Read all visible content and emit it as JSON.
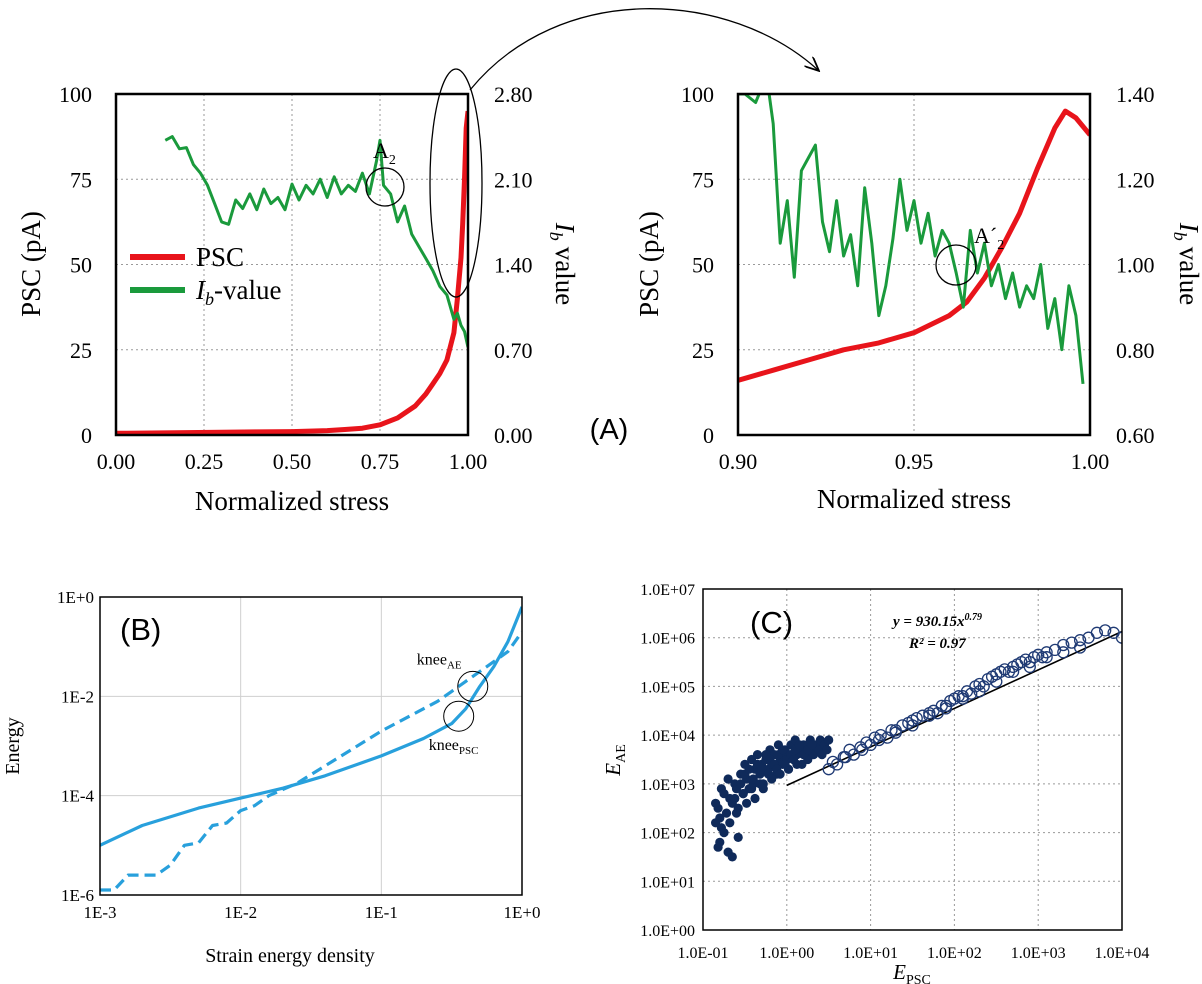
{
  "panel_labels": {
    "a": "(A)",
    "b": "(B)",
    "c": "(C)"
  },
  "colors": {
    "psc": "#e8141b",
    "ib": "#1a9a3c",
    "blue": "#28a0dc",
    "navy": "#0f2a5a"
  },
  "chart_data": [
    {
      "id": "A-left",
      "type": "line",
      "xlabel": "Normalized stress",
      "ylabel_left": "PSC (pA)",
      "ylabel_right": "value",
      "ylabel_right_italic": "I",
      "ylabel_right_sub": "b",
      "xlim": [
        0,
        1
      ],
      "ylim_left": [
        0,
        100
      ],
      "ylim_right": [
        0,
        2.8
      ],
      "x_ticks": [
        "0.00",
        "0.25",
        "0.50",
        "0.75",
        "1.00"
      ],
      "y_ticks_left": [
        "0",
        "25",
        "50",
        "75",
        "100"
      ],
      "y_ticks_right": [
        "0.00",
        "0.70",
        "1.40",
        "2.10",
        "2.80"
      ],
      "legend": {
        "psc": "PSC",
        "ib_italic": "I",
        "ib_sub": "b",
        "ib_rest": "-value"
      },
      "annotation": {
        "text": "A",
        "sub": "2"
      },
      "series": [
        {
          "name": "PSC",
          "axis": "left",
          "x": [
            0,
            0.1,
            0.2,
            0.3,
            0.4,
            0.5,
            0.6,
            0.65,
            0.7,
            0.75,
            0.8,
            0.85,
            0.88,
            0.9,
            0.92,
            0.94,
            0.96,
            0.97,
            0.98,
            0.985,
            0.99,
            0.995,
            1.0
          ],
          "y": [
            0.5,
            0.6,
            0.7,
            0.8,
            0.9,
            1.0,
            1.3,
            1.6,
            2.0,
            3.0,
            5.0,
            8.5,
            12,
            15,
            18,
            22,
            30,
            40,
            52,
            62,
            75,
            90,
            95
          ]
        },
        {
          "name": "Ib-value",
          "axis": "right",
          "x": [
            0.14,
            0.16,
            0.18,
            0.2,
            0.22,
            0.24,
            0.26,
            0.28,
            0.3,
            0.32,
            0.34,
            0.36,
            0.38,
            0.4,
            0.42,
            0.44,
            0.46,
            0.48,
            0.5,
            0.52,
            0.54,
            0.56,
            0.58,
            0.6,
            0.62,
            0.64,
            0.66,
            0.68,
            0.7,
            0.72,
            0.74,
            0.75,
            0.76,
            0.78,
            0.8,
            0.82,
            0.84,
            0.86,
            0.88,
            0.9,
            0.92,
            0.94,
            0.95,
            0.96,
            0.97,
            0.98,
            0.99,
            1.0
          ],
          "y": [
            2.42,
            2.45,
            2.35,
            2.36,
            2.22,
            2.15,
            2.05,
            1.9,
            1.75,
            1.73,
            1.93,
            1.86,
            1.98,
            1.85,
            2.02,
            1.9,
            1.95,
            1.85,
            2.06,
            1.93,
            2.05,
            1.98,
            2.1,
            1.95,
            2.12,
            1.98,
            2.05,
            2.0,
            2.15,
            1.98,
            2.25,
            2.42,
            2.05,
            1.98,
            1.75,
            1.88,
            1.65,
            1.55,
            1.45,
            1.35,
            1.22,
            1.15,
            1.05,
            0.95,
            1.0,
            0.9,
            0.85,
            0.72
          ]
        }
      ]
    },
    {
      "id": "A-right",
      "type": "line",
      "xlabel": "Normalized stress",
      "ylabel_left": "PSC (pA)",
      "ylabel_right": "value",
      "ylabel_right_italic": "I",
      "ylabel_right_sub": "b",
      "xlim": [
        0.9,
        1.0
      ],
      "ylim_left": [
        0,
        100
      ],
      "ylim_right": [
        0.6,
        1.4
      ],
      "x_ticks": [
        "0.90",
        "0.95",
        "1.00"
      ],
      "y_ticks_left": [
        "0",
        "25",
        "50",
        "75",
        "100"
      ],
      "y_ticks_right": [
        "0.60",
        "0.80",
        "1.00",
        "1.20",
        "1.40"
      ],
      "annotation": {
        "text": "A´",
        "sub": "2"
      },
      "series": [
        {
          "name": "PSC",
          "axis": "left",
          "x": [
            0.9,
            0.91,
            0.92,
            0.93,
            0.94,
            0.95,
            0.96,
            0.965,
            0.97,
            0.975,
            0.98,
            0.985,
            0.99,
            0.993,
            0.996,
            1.0
          ],
          "y": [
            16,
            19,
            22,
            25,
            27,
            30,
            35,
            39,
            46,
            55,
            65,
            78,
            90,
            95,
            93,
            88
          ]
        },
        {
          "name": "Ib-value",
          "axis": "right",
          "x": [
            0.9,
            0.902,
            0.905,
            0.907,
            0.908,
            0.91,
            0.912,
            0.914,
            0.916,
            0.918,
            0.92,
            0.922,
            0.924,
            0.926,
            0.928,
            0.93,
            0.932,
            0.934,
            0.936,
            0.938,
            0.94,
            0.942,
            0.944,
            0.946,
            0.948,
            0.95,
            0.952,
            0.954,
            0.956,
            0.958,
            0.96,
            0.962,
            0.964,
            0.966,
            0.968,
            0.97,
            0.972,
            0.974,
            0.976,
            0.978,
            0.98,
            0.982,
            0.984,
            0.986,
            0.988,
            0.99,
            0.992,
            0.994,
            0.996,
            0.998
          ],
          "y": [
            1.4,
            1.4,
            1.38,
            1.42,
            1.45,
            1.33,
            1.05,
            1.15,
            0.97,
            1.22,
            1.25,
            1.28,
            1.1,
            1.03,
            1.15,
            1.02,
            1.07,
            0.95,
            1.18,
            1.05,
            0.88,
            0.95,
            1.06,
            1.2,
            1.08,
            1.15,
            1.05,
            1.12,
            1.02,
            1.08,
            1.05,
            0.98,
            0.9,
            1.08,
            0.98,
            1.05,
            0.95,
            1.0,
            0.92,
            0.98,
            0.9,
            0.95,
            0.92,
            1.0,
            0.85,
            0.92,
            0.8,
            0.95,
            0.88,
            0.72
          ]
        }
      ]
    },
    {
      "id": "B",
      "type": "line",
      "scale": "log-log",
      "xlabel": "Strain energy density",
      "ylabel": "Energy",
      "xlim_log10": [
        -3,
        0
      ],
      "ylim_log10": [
        -6,
        0
      ],
      "x_ticks": [
        "1E-3",
        "1E-2",
        "1E-1",
        "1E+0"
      ],
      "y_ticks": [
        "1E-6",
        "1E-4",
        "1E-2",
        "1E+0"
      ],
      "annotations": [
        {
          "text": "knee",
          "sub": "AE",
          "log_x": -0.35,
          "log_y": -1.8
        },
        {
          "text": "knee",
          "sub": "PSC",
          "log_x": -0.45,
          "log_y": -2.4
        }
      ],
      "series": [
        {
          "name": "solid",
          "style": "solid",
          "log_x": [
            -3.0,
            -2.7,
            -2.3,
            -2.0,
            -1.7,
            -1.4,
            -1.0,
            -0.7,
            -0.5,
            -0.4,
            -0.3,
            -0.2,
            -0.1,
            0.0
          ],
          "log_y": [
            -5.0,
            -4.6,
            -4.25,
            -4.05,
            -3.85,
            -3.6,
            -3.2,
            -2.85,
            -2.55,
            -2.25,
            -1.8,
            -1.4,
            -0.9,
            -0.2
          ]
        },
        {
          "name": "dashed",
          "style": "dashed",
          "log_x": [
            -3.0,
            -2.9,
            -2.8,
            -2.6,
            -2.5,
            -2.4,
            -2.3,
            -2.2,
            -2.1,
            -2.0,
            -1.9,
            -1.8,
            -1.6,
            -1.4,
            -1.2,
            -1.0,
            -0.8,
            -0.6,
            -0.5,
            -0.4,
            -0.3,
            -0.2,
            -0.1,
            0.0
          ],
          "log_y": [
            -5.9,
            -5.9,
            -5.6,
            -5.6,
            -5.4,
            -5.0,
            -4.95,
            -4.6,
            -4.55,
            -4.3,
            -4.2,
            -4.0,
            -3.75,
            -3.4,
            -3.05,
            -2.7,
            -2.4,
            -2.1,
            -1.9,
            -1.7,
            -1.5,
            -1.3,
            -1.1,
            -0.7
          ]
        }
      ]
    },
    {
      "id": "C",
      "type": "scatter",
      "scale": "log-log",
      "xlabel": "E",
      "xlabel_sub": "PSC",
      "ylabel": "E",
      "ylabel_sub": "AE",
      "xlim_log10": [
        -1,
        4
      ],
      "ylim_log10": [
        0,
        7
      ],
      "x_ticks": [
        "1.0E-01",
        "1.0E+00",
        "1.0E+01",
        "1.0E+02",
        "1.0E+03",
        "1.0E+04"
      ],
      "y_ticks": [
        "1.0E+00",
        "1.0E+01",
        "1.0E+02",
        "1.0E+03",
        "1.0E+04",
        "1.0E+05",
        "1.0E+06",
        "1.0E+07"
      ],
      "fit": {
        "equation_prefix": "y = 930.15x",
        "exponent": "0.79",
        "r2_label": "R² = 0.97",
        "coef": 930.15,
        "power": 0.79,
        "log_x_range": [
          0.0,
          4.0
        ]
      },
      "series": [
        {
          "name": "filled",
          "marker": "filled",
          "log_x": [
            -0.85,
            -0.82,
            -0.8,
            -0.78,
            -0.75,
            -0.7,
            -0.68,
            -0.65,
            -0.62,
            -0.6,
            -0.58,
            -0.55,
            -0.52,
            -0.5,
            -0.48,
            -0.45,
            -0.42,
            -0.4,
            -0.38,
            -0.35,
            -0.32,
            -0.3,
            -0.28,
            -0.25,
            -0.22,
            -0.2,
            -0.18,
            -0.15,
            -0.12,
            -0.1,
            -0.08,
            -0.05,
            -0.02,
            0.0,
            0.02,
            0.05,
            0.08,
            0.1,
            0.12,
            0.15,
            0.18,
            0.2,
            0.22,
            0.25,
            0.28,
            0.3,
            0.32,
            0.35,
            0.38,
            0.4,
            0.42,
            0.45,
            0.48,
            0.5,
            -0.85,
            -0.8,
            -0.75,
            -0.7,
            -0.65,
            -0.6,
            -0.55,
            -0.5,
            -0.45,
            -0.4,
            -0.35,
            -0.3,
            -0.25,
            -0.2,
            -0.15,
            -0.1,
            -0.05,
            0.0,
            0.05,
            0.1,
            0.15,
            0.2,
            0.25,
            0.3,
            -0.82,
            -0.78,
            -0.72,
            -0.68,
            -0.62,
            -0.58,
            -0.52,
            -0.48,
            -0.42,
            -0.38,
            -0.32,
            -0.28,
            -0.22,
            -0.18,
            -0.12,
            -0.08,
            -0.02,
            0.02,
            0.08,
            0.12
          ],
          "log_y": [
            2.2,
            2.5,
            1.8,
            2.9,
            2.0,
            1.6,
            2.7,
            1.5,
            3.0,
            2.4,
            1.9,
            3.2,
            2.8,
            3.4,
            3.1,
            2.9,
            3.5,
            3.0,
            3.3,
            3.6,
            3.2,
            3.4,
            3.0,
            3.5,
            3.3,
            3.7,
            3.4,
            3.6,
            3.2,
            3.8,
            3.5,
            3.4,
            3.7,
            3.6,
            3.3,
            3.8,
            3.5,
            3.9,
            3.6,
            3.7,
            3.4,
            3.8,
            3.6,
            3.5,
            3.9,
            3.7,
            3.6,
            3.8,
            3.7,
            3.9,
            3.6,
            3.8,
            3.7,
            3.9,
            2.6,
            2.3,
            2.8,
            3.1,
            2.6,
            2.9,
            3.0,
            3.2,
            3.3,
            3.1,
            3.4,
            3.3,
            3.6,
            3.5,
            3.4,
            3.6,
            3.7,
            3.5,
            3.6,
            3.7,
            3.8,
            3.6,
            3.7,
            3.8,
            1.7,
            2.1,
            2.4,
            2.2,
            2.7,
            2.5,
            2.8,
            2.6,
            2.9,
            2.7,
            3.0,
            2.9,
            3.2,
            3.1,
            3.3,
            3.2,
            3.4,
            3.3,
            3.5,
            3.4
          ]
        },
        {
          "name": "open",
          "marker": "open",
          "log_x": [
            0.5,
            0.55,
            0.6,
            0.68,
            0.75,
            0.8,
            0.88,
            0.95,
            1.0,
            1.05,
            1.12,
            1.2,
            1.25,
            1.3,
            1.38,
            1.45,
            1.5,
            1.55,
            1.62,
            1.7,
            1.75,
            1.8,
            1.85,
            1.9,
            1.95,
            2.0,
            2.05,
            2.1,
            2.15,
            2.2,
            2.25,
            2.3,
            2.35,
            2.4,
            2.45,
            2.5,
            2.55,
            2.6,
            2.65,
            2.7,
            2.75,
            2.8,
            2.85,
            2.9,
            2.95,
            3.0,
            3.05,
            3.1,
            3.2,
            3.3,
            3.4,
            3.5,
            3.6,
            3.7,
            3.8,
            3.9,
            4.0,
            0.7,
            0.9,
            1.1,
            1.3,
            1.5,
            1.7,
            1.9,
            2.1,
            2.3,
            2.5,
            2.7,
            2.9,
            3.1,
            3.3,
            3.5
          ],
          "log_y": [
            3.3,
            3.45,
            3.4,
            3.55,
            3.7,
            3.6,
            3.75,
            3.85,
            3.8,
            3.95,
            4.0,
            3.95,
            4.1,
            4.05,
            4.2,
            4.25,
            4.3,
            4.35,
            4.4,
            4.45,
            4.5,
            4.45,
            4.6,
            4.55,
            4.7,
            4.75,
            4.8,
            4.75,
            4.9,
            4.85,
            5.0,
            5.05,
            5.0,
            5.15,
            5.2,
            5.25,
            5.3,
            5.35,
            5.3,
            5.4,
            5.45,
            5.5,
            5.55,
            5.5,
            5.6,
            5.65,
            5.6,
            5.7,
            5.75,
            5.85,
            5.9,
            5.95,
            6.0,
            6.1,
            6.15,
            6.1,
            6.0,
            3.55,
            3.7,
            3.9,
            4.1,
            4.2,
            4.4,
            4.6,
            4.8,
            4.9,
            5.1,
            5.3,
            5.4,
            5.6,
            5.7,
            5.8
          ]
        }
      ]
    }
  ]
}
